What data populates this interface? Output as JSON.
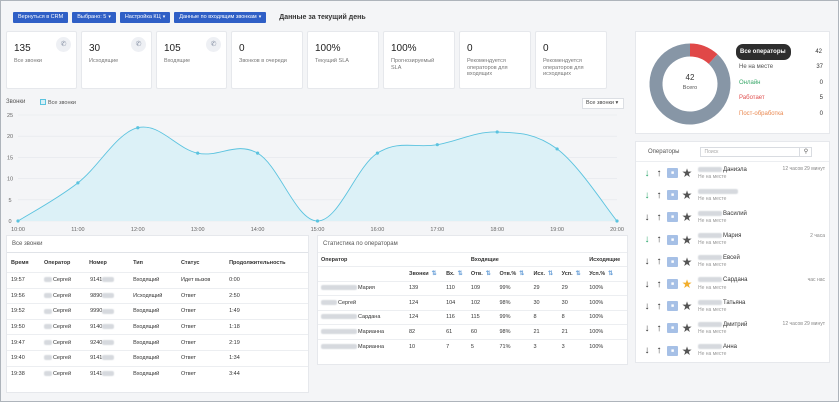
{
  "toolbar": {
    "buttons": [
      {
        "label": "Вернуться в CRM",
        "caret": ""
      },
      {
        "label": "Выбрано: 5",
        "caret": "▾"
      },
      {
        "label": "Настройка КЦ",
        "caret": "▾"
      },
      {
        "label": "Данные по входящим звонкам",
        "caret": "▾"
      }
    ],
    "title": "Данные за текущий день"
  },
  "stats": [
    {
      "value": "135",
      "label": "Все звонки",
      "icon": "phone-icon"
    },
    {
      "value": "30",
      "label": "Исходящие",
      "icon": "phone-outgoing-icon"
    },
    {
      "value": "105",
      "label": "Входящие",
      "icon": "phone-incoming-icon"
    },
    {
      "value": "0",
      "label": "Звонков в очереди",
      "icon": ""
    },
    {
      "value": "100%",
      "label": "Текущий SLA",
      "icon": ""
    },
    {
      "value": "100%",
      "label": "Прогнозируемый SLA",
      "icon": ""
    },
    {
      "value": "0",
      "label": "Рекомендуется операторов для входящих",
      "icon": ""
    },
    {
      "value": "0",
      "label": "Рекомендуется операторов для исходящих",
      "icon": ""
    }
  ],
  "chart_data": {
    "type": "area",
    "title": "Звонки",
    "series": [
      {
        "name": "Все звонки",
        "values": [
          0,
          9,
          22,
          16,
          16,
          0,
          16,
          18,
          21,
          17,
          0
        ]
      }
    ],
    "categories": [
      "10:00",
      "11:00",
      "12:00",
      "13:00",
      "14:00",
      "15:00",
      "16:00",
      "17:00",
      "18:00",
      "19:00",
      "20:00"
    ],
    "ylim": [
      0,
      25
    ],
    "yticks": [
      "0",
      "5",
      "10",
      "15",
      "20",
      "25"
    ],
    "color": "#5bc3df",
    "fill": "#dcf1f7",
    "selector": "Все звонки"
  },
  "calls": {
    "title": "Все звонки",
    "headers": [
      "Время",
      "Оператор",
      "Номер",
      "Тип",
      "Статус",
      "Продолжительность"
    ],
    "rows": [
      [
        "19:57",
        "Сергей",
        "9141",
        "Входящий",
        "Идет вызов",
        "0:00"
      ],
      [
        "19:56",
        "Сергей",
        "9890",
        "Исходящий",
        "Ответ",
        "2:50"
      ],
      [
        "19:52",
        "Сергей",
        "9990",
        "Входящий",
        "Ответ",
        "1:49"
      ],
      [
        "19:50",
        "Сергей",
        "9140",
        "Входящий",
        "Ответ",
        "1:18"
      ],
      [
        "19:47",
        "Сергей",
        "9240",
        "Входящий",
        "Ответ",
        "2:19"
      ],
      [
        "19:40",
        "Сергей",
        "9141",
        "Входящий",
        "Ответ",
        "1:34"
      ],
      [
        "19:38",
        "Сергей",
        "9141",
        "Входящий",
        "Ответ",
        "3:44"
      ]
    ]
  },
  "operator_stats": {
    "title": "Статистика по операторам",
    "group_headers": [
      "Оператор",
      "Входящие",
      "Исходящие"
    ],
    "sub_headers": [
      "Звонки",
      "Вх.",
      "Отв.",
      "Отв.%",
      "Исх.",
      "Усп.",
      "Усп.%"
    ],
    "rows": [
      [
        "Мария",
        "139",
        "110",
        "109",
        "99%",
        "29",
        "29",
        "100%"
      ],
      [
        "Сергей",
        "124",
        "104",
        "102",
        "98%",
        "30",
        "30",
        "100%"
      ],
      [
        "Сардана",
        "124",
        "116",
        "115",
        "99%",
        "8",
        "8",
        "100%"
      ],
      [
        "Марианна",
        "82",
        "61",
        "60",
        "98%",
        "21",
        "21",
        "100%"
      ],
      [
        "Марианна",
        "10",
        "7",
        "5",
        "71%",
        "3",
        "3",
        "100%"
      ]
    ]
  },
  "donut": {
    "total": "42",
    "total_label": "Всего",
    "slices": [
      {
        "value": 5,
        "color": "#e04848"
      },
      {
        "value": 37,
        "color": "#8796a6"
      }
    ],
    "statuses": [
      {
        "label": "Все операторы",
        "count": "42",
        "color": "#ffffff"
      },
      {
        "label": "Не на месте",
        "count": "37",
        "color": "#555555"
      },
      {
        "label": "Онлайн",
        "count": "0",
        "color": "#3aa86a"
      },
      {
        "label": "Работает",
        "count": "5",
        "color": "#e05050"
      },
      {
        "label": "Пост-обработка",
        "count": "0",
        "color": "#e9874e"
      }
    ]
  },
  "operators": {
    "title": "Операторы",
    "search_placeholder": "Поиск",
    "list": [
      {
        "name": "Даниэла",
        "status": "Не на месте",
        "time": "12 часов 29 минут",
        "arrow": "green",
        "star": "dark"
      },
      {
        "name": "",
        "status": "Не на месте",
        "time": "",
        "arrow": "green",
        "star": "dark"
      },
      {
        "name": "Василий",
        "status": "Не на месте",
        "time": "",
        "arrow": "dark",
        "star": "dark"
      },
      {
        "name": "Мария",
        "status": "Не на месте",
        "time": "2 часа",
        "arrow": "green",
        "star": "dark"
      },
      {
        "name": "Евсей",
        "status": "Не на месте",
        "time": "",
        "arrow": "dark",
        "star": "dark"
      },
      {
        "name": "Сардана",
        "status": "Не на месте",
        "time": "час нас",
        "arrow": "dark",
        "star": "gold"
      },
      {
        "name": "Татьяна",
        "status": "Не на месте",
        "time": "",
        "arrow": "dark",
        "star": "dark"
      },
      {
        "name": "Дмитрий",
        "status": "Не на месте",
        "time": "12 часов 29 минут",
        "arrow": "dark",
        "star": "dark"
      },
      {
        "name": "Анна",
        "status": "Не на месте",
        "time": "",
        "arrow": "dark",
        "star": "dark"
      }
    ]
  }
}
